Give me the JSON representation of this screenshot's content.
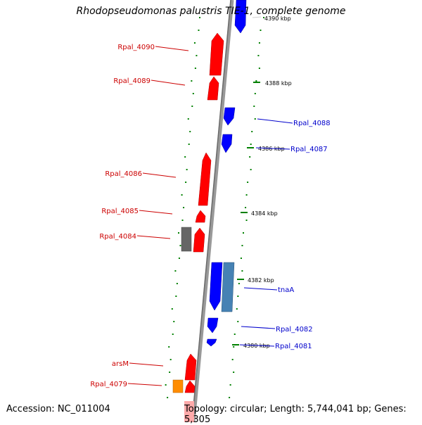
{
  "title": "Rhodopseudomonas palustris TIE-1, complete genome",
  "footer": {
    "accession": "Accession: NC_011004",
    "summary": "Topology: circular; Length: 5,744,041 bp; Genes: 5,305"
  },
  "colors": {
    "forward_gene": "#ff0000",
    "reverse_gene": "#0000ff",
    "pseudo_gene": "#666666",
    "rna_gene": "#ff8c00",
    "highlight_gene": "#4682b4",
    "backbone": "#999999",
    "gc_dots": "#008000",
    "label_forward": "#cc0000",
    "label_reverse": "#0000cc"
  },
  "tick_labels": [
    "4390 kbp",
    "4388 kbp",
    "4386 kbp",
    "4384 kbp",
    "4382 kbp",
    "4380 kbp"
  ],
  "forward_labels": [
    "Rpal_4090",
    "Rpal_4089",
    "Rpal_4086",
    "Rpal_4085",
    "Rpal_4084",
    "arsM",
    "Rpal_4079"
  ],
  "reverse_labels": [
    "Rpal_4088",
    "Rpal_4087",
    "tnaA",
    "Rpal_4082",
    "Rpal_4081"
  ]
}
